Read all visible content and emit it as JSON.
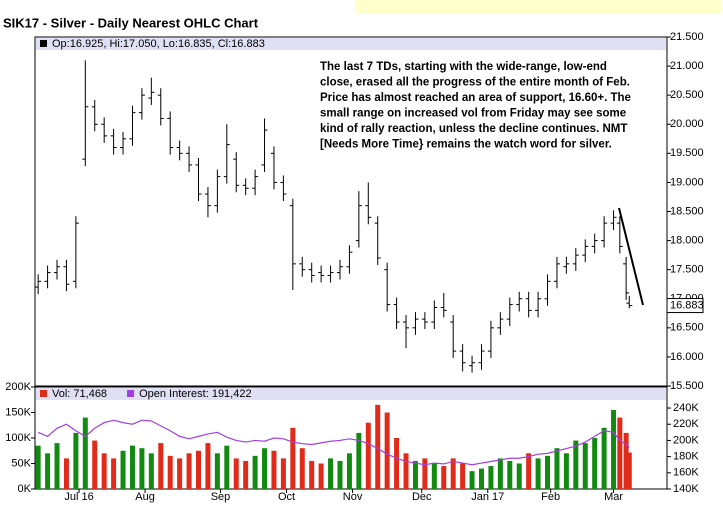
{
  "chart_data": [
    {
      "type": "ohlc",
      "title": "SIK17 - Silver - Daily Nearest OHLC Chart",
      "legend_text": "Op:16.925, Hi:17.050, Lo:16.835, Cl:16.883",
      "last_label": "16.883",
      "color": "#000000",
      "annotation": [
        "The last 7 TDs, starting with the wide-range, low-end",
        "close, erased all the progress of the entire month of Feb.",
        "Price has almost reached an area of support, 16.60+.  The",
        "small range on increased vol from Friday may see some",
        "kind of rally reaction, unless the decline continues.  NMT",
        "[Needs More Time} remains the watch word for silver."
      ],
      "x": [
        0,
        3,
        6,
        9,
        12,
        15,
        18,
        21,
        24,
        27,
        30,
        33,
        36,
        39,
        42,
        45,
        48,
        51,
        54,
        57,
        60,
        63,
        66,
        69,
        72,
        75,
        78,
        81,
        84,
        87,
        90,
        93,
        96,
        99,
        102,
        105,
        108,
        111,
        114,
        117,
        120,
        123,
        126,
        129,
        132,
        135,
        138,
        141,
        144,
        147,
        150,
        153,
        156,
        159,
        162,
        165,
        168,
        171,
        174,
        177,
        180,
        183,
        185,
        187,
        188
      ],
      "open": [
        17.2,
        17.3,
        17.45,
        17.55,
        17.3,
        19.4,
        20.3,
        20.0,
        19.8,
        19.6,
        19.75,
        20.2,
        20.45,
        20.5,
        20.1,
        19.6,
        19.5,
        19.3,
        18.8,
        18.6,
        19.1,
        19.4,
        18.95,
        18.9,
        19.3,
        19.5,
        19.0,
        18.6,
        17.6,
        17.5,
        17.45,
        17.4,
        17.45,
        17.55,
        18.0,
        18.6,
        18.3,
        17.5,
        16.9,
        16.6,
        16.5,
        16.65,
        16.6,
        16.85,
        16.6,
        16.1,
        15.85,
        15.9,
        16.1,
        16.5,
        16.65,
        16.9,
        17.0,
        16.8,
        17.0,
        17.3,
        17.55,
        17.6,
        17.75,
        17.9,
        18.0,
        18.3,
        18.3,
        17.6,
        16.925
      ],
      "high": [
        17.42,
        17.57,
        17.67,
        17.67,
        18.42,
        21.1,
        20.42,
        20.12,
        19.92,
        19.87,
        20.32,
        20.62,
        20.8,
        20.62,
        20.22,
        19.72,
        19.62,
        19.42,
        18.92,
        19.22,
        20.0,
        19.52,
        19.07,
        19.22,
        20.1,
        19.62,
        19.12,
        18.72,
        17.72,
        17.62,
        17.57,
        17.57,
        17.67,
        17.92,
        18.85,
        19.0,
        18.42,
        17.62,
        17.02,
        16.72,
        16.77,
        16.77,
        16.97,
        17.1,
        16.72,
        16.22,
        16.02,
        16.22,
        16.62,
        16.77,
        17.02,
        17.12,
        17.12,
        17.12,
        17.42,
        17.72,
        17.72,
        17.87,
        18.02,
        18.12,
        18.42,
        18.52,
        18.42,
        17.72,
        17.05
      ],
      "low": [
        17.08,
        17.18,
        17.33,
        17.13,
        17.18,
        19.28,
        19.88,
        19.68,
        19.48,
        19.48,
        19.63,
        20.08,
        20.33,
        19.98,
        19.48,
        19.38,
        19.18,
        18.68,
        18.4,
        18.48,
        18.98,
        18.83,
        18.78,
        18.78,
        19.18,
        18.88,
        18.68,
        17.15,
        17.38,
        17.28,
        17.28,
        17.28,
        17.33,
        17.43,
        17.88,
        18.28,
        17.58,
        16.78,
        16.48,
        16.15,
        16.38,
        16.48,
        16.48,
        16.68,
        15.98,
        15.75,
        15.73,
        15.78,
        15.98,
        16.38,
        16.53,
        16.78,
        16.68,
        16.68,
        16.88,
        17.18,
        17.43,
        17.48,
        17.63,
        17.78,
        17.88,
        18.18,
        17.78,
        16.98,
        16.835
      ],
      "close": [
        17.3,
        17.45,
        17.55,
        17.25,
        18.3,
        20.3,
        20.0,
        19.8,
        19.6,
        19.75,
        20.2,
        20.5,
        20.55,
        20.1,
        19.6,
        19.5,
        19.3,
        18.8,
        18.6,
        19.1,
        19.65,
        18.95,
        18.9,
        19.1,
        19.9,
        19.0,
        18.8,
        17.6,
        17.5,
        17.4,
        17.4,
        17.45,
        17.55,
        17.8,
        18.6,
        18.4,
        17.7,
        16.9,
        16.6,
        16.5,
        16.65,
        16.6,
        16.85,
        16.8,
        16.1,
        15.9,
        15.9,
        16.1,
        16.5,
        16.65,
        16.9,
        17.0,
        16.8,
        17.0,
        17.3,
        17.6,
        17.6,
        17.75,
        17.9,
        18.0,
        18.3,
        18.4,
        17.9,
        17.1,
        16.883
      ],
      "xlim": [
        -1,
        200
      ],
      "ylim": [
        15.5,
        21.5
      ],
      "yticks": [
        {
          "value": 21.5,
          "label": "21.500"
        },
        {
          "value": 21.0,
          "label": "21.000"
        },
        {
          "value": 20.5,
          "label": "20.500"
        },
        {
          "value": 20.0,
          "label": "20.000"
        },
        {
          "value": 19.5,
          "label": "19.500"
        },
        {
          "value": 19.0,
          "label": "19.000"
        },
        {
          "value": 18.5,
          "label": "18.500"
        },
        {
          "value": 18.0,
          "label": "18.000"
        },
        {
          "value": 17.5,
          "label": "17.500"
        },
        {
          "value": 17.0,
          "label": "17.000"
        },
        {
          "value": 16.5,
          "label": "16.500"
        },
        {
          "value": 16.0,
          "label": "16.000"
        },
        {
          "value": 15.5,
          "label": "15.500"
        }
      ]
    },
    {
      "type": "bar",
      "x": [
        0,
        3,
        6,
        9,
        12,
        15,
        18,
        21,
        24,
        27,
        30,
        33,
        36,
        39,
        42,
        45,
        48,
        51,
        54,
        57,
        60,
        63,
        66,
        69,
        72,
        75,
        78,
        81,
        84,
        87,
        90,
        93,
        96,
        99,
        102,
        105,
        108,
        111,
        114,
        117,
        120,
        123,
        126,
        129,
        132,
        135,
        138,
        141,
        144,
        147,
        150,
        153,
        156,
        159,
        162,
        165,
        168,
        171,
        174,
        177,
        180,
        183,
        185,
        187,
        188
      ],
      "series": [
        {
          "name": "Vol: 71,468",
          "color": "#e02a1a",
          "up_color": "#128a12",
          "down_color": "#e02a1a",
          "values": [
            85000,
            70000,
            90000,
            60000,
            110000,
            140000,
            95000,
            70000,
            60000,
            75000,
            85000,
            80000,
            70000,
            90000,
            65000,
            60000,
            70000,
            75000,
            90000,
            70000,
            85000,
            60000,
            55000,
            65000,
            80000,
            75000,
            60000,
            120000,
            80000,
            55000,
            50000,
            60000,
            55000,
            70000,
            110000,
            130000,
            165000,
            150000,
            100000,
            70000,
            55000,
            60000,
            50000,
            45000,
            60000,
            50000,
            35000,
            40000,
            45000,
            60000,
            55000,
            50000,
            70000,
            60000,
            65000,
            80000,
            70000,
            95000,
            90000,
            100000,
            120000,
            155000,
            140000,
            110000,
            71468
          ]
        },
        {
          "name": "Open Interest: 191,422",
          "color": "#a040e0",
          "axis": "y2",
          "values": [
            210000,
            205000,
            215000,
            220000,
            212000,
            205000,
            215000,
            222000,
            225000,
            222000,
            220000,
            225000,
            224000,
            218000,
            212000,
            205000,
            202000,
            205000,
            208000,
            210000,
            204000,
            200000,
            198000,
            200000,
            199000,
            203000,
            202000,
            198000,
            196000,
            195000,
            197000,
            199000,
            200000,
            202000,
            200000,
            196000,
            190000,
            183000,
            178000,
            174000,
            172000,
            170000,
            172000,
            171000,
            174000,
            172000,
            170000,
            172000,
            174000,
            176000,
            178000,
            178000,
            180000,
            183000,
            184000,
            187000,
            190000,
            193000,
            198000,
            205000,
            212000,
            210000,
            200000,
            195000,
            191422
          ]
        }
      ],
      "xlim": [
        -1,
        200
      ],
      "ylim": [
        0,
        200000
      ],
      "y2lim": [
        140000,
        266000
      ],
      "yticks": [
        {
          "value": 0,
          "label": "0K"
        },
        {
          "value": 50000,
          "label": "50K"
        },
        {
          "value": 100000,
          "label": "100K"
        },
        {
          "value": 150000,
          "label": "150K"
        },
        {
          "value": 200000,
          "label": "200K"
        }
      ],
      "y2ticks": [
        {
          "value": 140000,
          "label": "140K"
        },
        {
          "value": 160000,
          "label": "160K"
        },
        {
          "value": 180000,
          "label": "180K"
        },
        {
          "value": 200000,
          "label": "200K"
        },
        {
          "value": 220000,
          "label": "220K"
        },
        {
          "value": 240000,
          "label": "240K"
        }
      ],
      "xticks": [
        {
          "value": 13,
          "label": "Jul 16"
        },
        {
          "value": 34,
          "label": "Aug"
        },
        {
          "value": 58,
          "label": "Sep"
        },
        {
          "value": 79,
          "label": "Oct"
        },
        {
          "value": 100,
          "label": "Nov"
        },
        {
          "value": 122,
          "label": "Dec"
        },
        {
          "value": 143,
          "label": "Jan 17"
        },
        {
          "value": 163,
          "label": "Feb"
        },
        {
          "value": 183,
          "label": "Mar"
        }
      ]
    }
  ]
}
